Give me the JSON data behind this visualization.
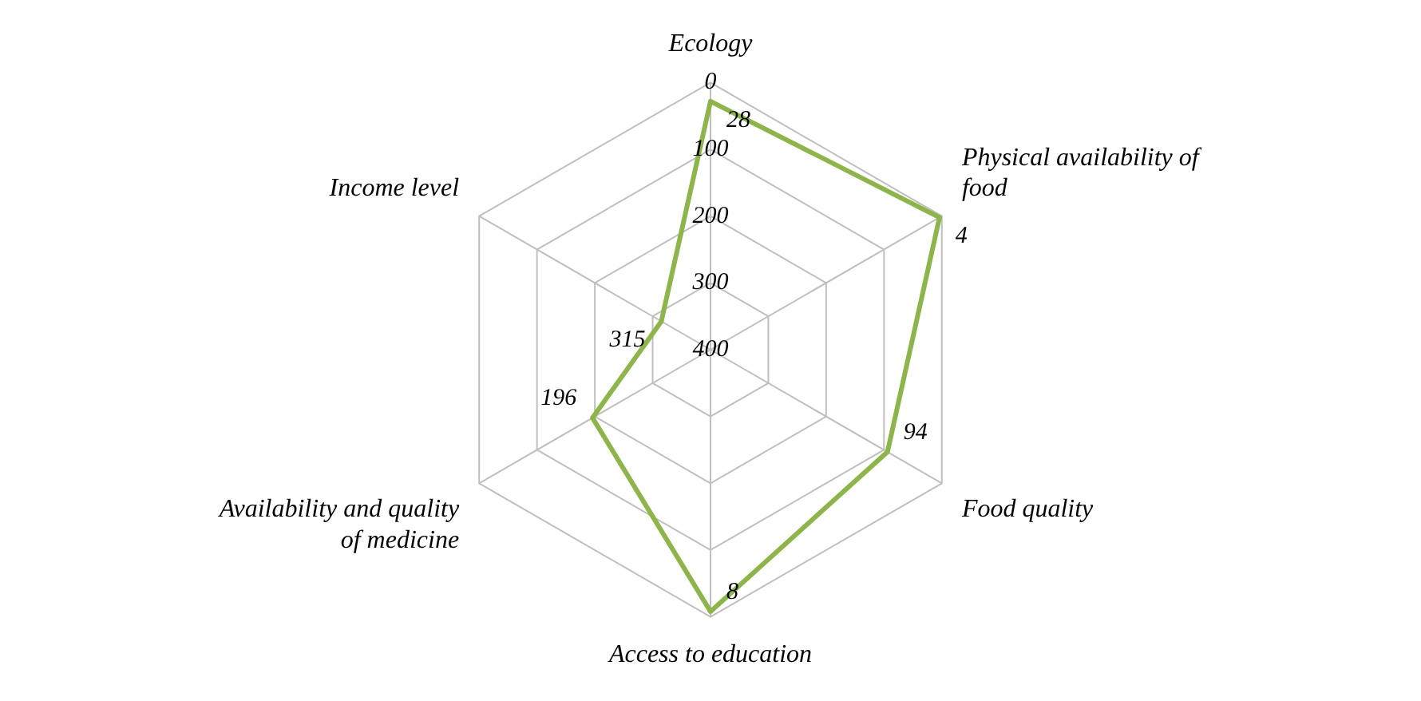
{
  "chart_data": {
    "type": "radar",
    "categories": [
      "Ecology",
      "Physical availability of food",
      "Food quality",
      "Access to education",
      "Availability and quality of medicine",
      "Income level"
    ],
    "series": [
      {
        "color": "#8db54b",
        "values": [
          28,
          4,
          94,
          8,
          196,
          315
        ]
      }
    ],
    "ylim": [
      400,
      0
    ],
    "yticks": [
      0,
      100,
      200,
      300,
      400
    ],
    "data_labels": true,
    "grid": true,
    "legend": false,
    "marker": "none",
    "line_style": "solid"
  }
}
